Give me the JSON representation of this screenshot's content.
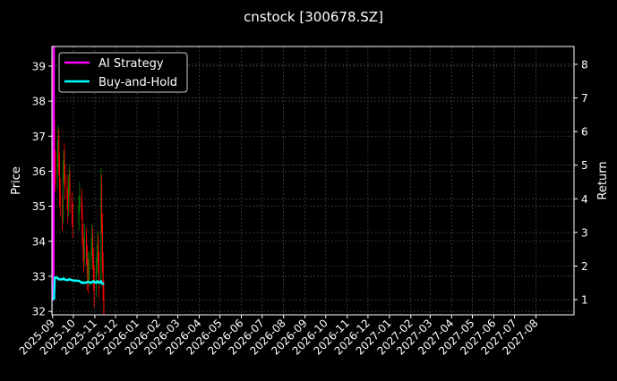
{
  "chart_data": {
    "type": "candlestick+line",
    "title": "cnstock [300678.SZ]",
    "ylabel_left": "Price",
    "ylabel_right": "Return",
    "ylim_left": [
      31.9,
      39.56
    ],
    "ylim_right": [
      0.55,
      8.53
    ],
    "yticks_left": [
      32,
      33,
      34,
      35,
      36,
      37,
      38,
      39
    ],
    "yticks_right": [
      1,
      2,
      3,
      4,
      5,
      6,
      7,
      8
    ],
    "xticks": [
      "2025-09",
      "2025-10",
      "2025-11",
      "2025-12",
      "2026-01",
      "2026-02",
      "2026-03",
      "2026-04",
      "2026-05",
      "2026-06",
      "2026-07",
      "2026-08",
      "2026-09",
      "2026-10",
      "2026-11",
      "2026-12",
      "2027-01",
      "2027-02",
      "2027-03",
      "2027-04",
      "2027-05",
      "2027-06",
      "2027-07",
      "2027-08"
    ],
    "xlim": [
      "2025-08-31",
      "2027-09-25"
    ],
    "grid": true,
    "legend_position": "top-left",
    "colors": {
      "up": "#008000",
      "down": "#ff0000",
      "ai": "#ff00ff",
      "bh": "#00ffff",
      "background": "#000000"
    },
    "candles": [
      [
        "2025-09-01",
        38.9,
        39.2,
        38.2,
        38.6
      ],
      [
        "2025-09-02",
        38.6,
        38.9,
        37.6,
        38.0
      ],
      [
        "2025-09-03",
        38.0,
        38.3,
        36.8,
        37.2
      ],
      [
        "2025-09-04",
        37.2,
        37.5,
        35.6,
        36.0
      ],
      [
        "2025-09-05",
        36.0,
        36.6,
        35.4,
        35.8
      ],
      [
        "2025-09-08",
        35.8,
        36.9,
        35.5,
        36.5
      ],
      [
        "2025-09-09",
        36.5,
        37.3,
        36.1,
        37.0
      ],
      [
        "2025-09-10",
        37.0,
        37.2,
        35.9,
        36.2
      ],
      [
        "2025-09-11",
        36.2,
        36.5,
        35.0,
        35.4
      ],
      [
        "2025-09-12",
        35.4,
        35.8,
        34.7,
        35.0
      ],
      [
        "2025-09-15",
        35.0,
        35.3,
        34.3,
        34.6
      ],
      [
        "2025-09-16",
        34.6,
        36.3,
        34.5,
        36.0
      ],
      [
        "2025-09-17",
        36.0,
        36.6,
        35.7,
        36.6
      ],
      [
        "2025-09-18",
        36.6,
        36.8,
        35.6,
        35.9
      ],
      [
        "2025-09-19",
        35.9,
        36.2,
        35.2,
        35.5
      ],
      [
        "2025-09-22",
        35.5,
        35.9,
        34.9,
        35.2
      ],
      [
        "2025-09-23",
        35.2,
        35.5,
        34.5,
        34.9
      ],
      [
        "2025-09-24",
        34.9,
        35.9,
        34.7,
        35.6
      ],
      [
        "2025-09-25",
        35.6,
        36.2,
        35.3,
        35.8
      ],
      [
        "2025-09-26",
        35.8,
        36.0,
        34.8,
        35.1
      ],
      [
        "2025-09-29",
        35.1,
        35.4,
        34.4,
        34.8
      ],
      [
        "2025-09-30",
        34.8,
        35.1,
        34.1,
        34.5
      ],
      [
        "2025-10-09",
        34.5,
        35.3,
        34.3,
        35.0
      ],
      [
        "2025-10-10",
        35.0,
        35.7,
        34.8,
        35.3
      ],
      [
        "2025-10-13",
        35.3,
        35.5,
        34.6,
        34.9
      ],
      [
        "2025-10-14",
        34.9,
        35.1,
        33.9,
        34.2
      ],
      [
        "2025-10-15",
        34.2,
        34.5,
        33.4,
        33.8
      ],
      [
        "2025-10-16",
        33.8,
        34.1,
        33.1,
        33.5
      ],
      [
        "2025-10-17",
        33.5,
        34.5,
        33.3,
        34.2
      ],
      [
        "2025-10-20",
        34.2,
        34.4,
        33.3,
        33.6
      ],
      [
        "2025-10-21",
        33.6,
        33.9,
        32.6,
        33.0
      ],
      [
        "2025-10-22",
        33.0,
        33.7,
        32.8,
        33.3
      ],
      [
        "2025-10-23",
        33.3,
        33.5,
        32.5,
        32.9
      ],
      [
        "2025-10-24",
        32.9,
        33.7,
        32.7,
        33.4
      ],
      [
        "2025-10-27",
        33.4,
        34.1,
        33.2,
        33.8
      ],
      [
        "2025-10-28",
        33.8,
        34.5,
        33.6,
        34.2
      ],
      [
        "2025-10-29",
        34.2,
        34.4,
        33.2,
        33.5
      ],
      [
        "2025-10-30",
        33.5,
        33.8,
        32.6,
        33.0
      ],
      [
        "2025-10-31",
        33.0,
        33.3,
        32.1,
        32.6
      ],
      [
        "2025-11-03",
        32.6,
        33.5,
        32.4,
        33.2
      ],
      [
        "2025-11-04",
        33.2,
        33.9,
        33.0,
        33.6
      ],
      [
        "2025-11-05",
        33.6,
        34.3,
        33.4,
        34.0
      ],
      [
        "2025-11-06",
        34.0,
        34.2,
        33.1,
        33.4
      ],
      [
        "2025-11-07",
        33.4,
        33.7,
        32.4,
        32.8
      ],
      [
        "2025-11-10",
        32.8,
        36.1,
        32.7,
        35.6
      ],
      [
        "2025-11-11",
        35.6,
        35.9,
        34.2,
        34.5
      ],
      [
        "2025-11-12",
        34.5,
        34.8,
        33.1,
        33.4
      ],
      [
        "2025-11-13",
        33.4,
        33.7,
        32.3,
        32.6
      ],
      [
        "2025-11-14",
        32.6,
        32.9,
        31.8,
        31.9
      ]
    ],
    "series": [
      {
        "name": "AI Strategy",
        "values": [
          1.0,
          1.0,
          12,
          12,
          12,
          12,
          12,
          12,
          12,
          12,
          12,
          12,
          12,
          12,
          12,
          12,
          12,
          12,
          12,
          12,
          12,
          12,
          12,
          12,
          12,
          12,
          12,
          12,
          12,
          12,
          12,
          12,
          12,
          12,
          12,
          12,
          12,
          12,
          12,
          12,
          12,
          12,
          12,
          12,
          12,
          12,
          12,
          12,
          12
        ]
      },
      {
        "name": "Buy-and-Hold",
        "values": [
          1.05,
          1.02,
          1.03,
          1.65,
          1.66,
          1.65,
          1.62,
          1.6,
          1.6,
          1.61,
          1.6,
          1.62,
          1.63,
          1.6,
          1.6,
          1.58,
          1.58,
          1.6,
          1.61,
          1.6,
          1.58,
          1.57,
          1.56,
          1.55,
          1.5,
          1.5,
          1.52,
          1.5,
          1.5,
          1.51,
          1.52,
          1.53,
          1.53,
          1.52,
          1.5,
          1.52,
          1.54,
          1.55,
          1.53,
          1.5,
          1.52,
          1.55,
          1.52,
          1.5,
          1.55,
          1.5,
          1.48,
          1.47,
          1.45
        ]
      }
    ]
  }
}
